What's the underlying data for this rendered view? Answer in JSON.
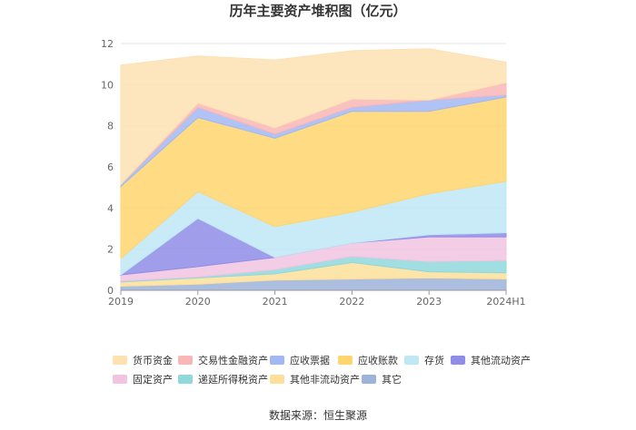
{
  "chart_data": {
    "type": "area",
    "stacked": true,
    "title": "历年主要资产堆积图（亿元）",
    "xlabel": "",
    "ylabel": "",
    "categories": [
      "2019",
      "2020",
      "2021",
      "2022",
      "2023",
      "2024H1"
    ],
    "ylim": [
      0,
      12
    ],
    "yticks": [
      0,
      2,
      4,
      6,
      8,
      10,
      12
    ],
    "grid": true,
    "legend_position": "bottom",
    "series": [
      {
        "name": "其它",
        "color": "#9db3d9",
        "values": [
          0.2,
          0.3,
          0.5,
          0.55,
          0.6,
          0.55
        ]
      },
      {
        "name": "其他非流动资产",
        "color": "#fddf9a",
        "values": [
          0.2,
          0.3,
          0.3,
          0.8,
          0.3,
          0.3
        ]
      },
      {
        "name": "递延所得税资产",
        "color": "#8fd8dc",
        "values": [
          0.05,
          0.05,
          0.2,
          0.3,
          0.5,
          0.6
        ]
      },
      {
        "name": "固定资产",
        "color": "#f1c4e0",
        "values": [
          0.3,
          0.5,
          0.6,
          0.65,
          1.2,
          1.15
        ]
      },
      {
        "name": "其他流动资产",
        "color": "#8f8de8",
        "values": [
          0.0,
          2.35,
          0.0,
          0.0,
          0.1,
          0.2
        ]
      },
      {
        "name": "存货",
        "color": "#bfe7f6",
        "values": [
          0.8,
          1.3,
          1.5,
          1.5,
          2.0,
          2.5
        ]
      },
      {
        "name": "应收账款",
        "color": "#ffd56f",
        "values": [
          3.5,
          3.6,
          4.3,
          4.9,
          4.0,
          4.1
        ]
      },
      {
        "name": "应收票据",
        "color": "#a2b8f2",
        "values": [
          0.1,
          0.5,
          0.2,
          0.2,
          0.55,
          0.1
        ]
      },
      {
        "name": "交易性金融资产",
        "color": "#f9b6b6",
        "values": [
          0.0,
          0.2,
          0.3,
          0.4,
          0.0,
          0.6
        ]
      },
      {
        "name": "货币资金",
        "color": "#fde1b2",
        "values": [
          5.8,
          2.3,
          3.3,
          2.35,
          2.5,
          1.0
        ]
      }
    ],
    "legend_order": [
      "货币资金",
      "交易性金融资产",
      "应收票据",
      "应收账款",
      "存货",
      "其他流动资产",
      "固定资产",
      "递延所得税资产",
      "其他非流动资产",
      "其它"
    ]
  },
  "source": "数据来源：恒生聚源"
}
